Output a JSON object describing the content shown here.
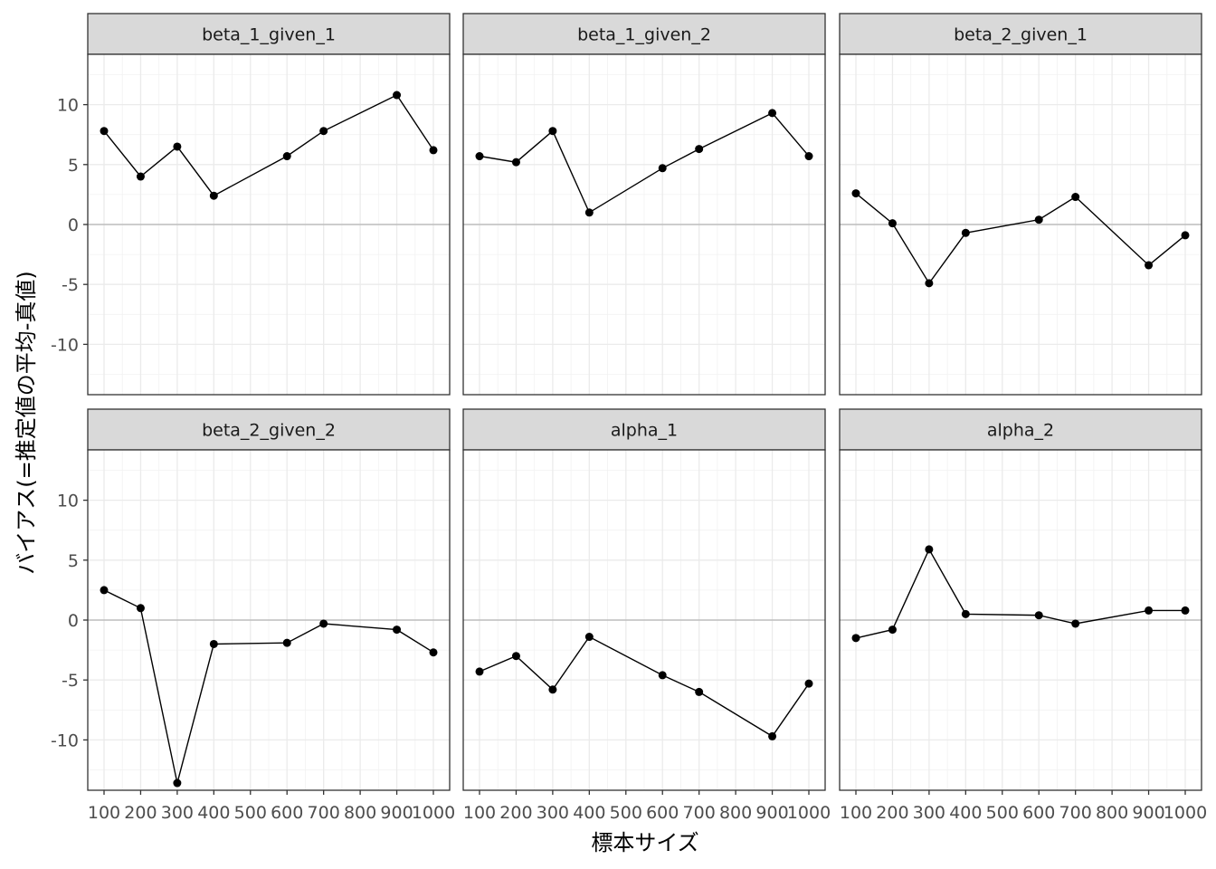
{
  "chart_data": {
    "type": "line",
    "facet_layout": "3 columns x 2 rows, shared axes",
    "xlabel": "標本サイズ",
    "ylabel": "バイアス(=推定値の平均-真値)",
    "x_ticks": [
      100,
      200,
      300,
      400,
      500,
      600,
      700,
      800,
      900,
      1000
    ],
    "x_tick_labels": [
      "100",
      "200",
      "300",
      "400",
      "500",
      "600",
      "700",
      "800",
      "900",
      "1000"
    ],
    "y_ticks": [
      -10,
      -5,
      0,
      5,
      10
    ],
    "y_tick_labels": [
      "-10",
      "-5",
      "0",
      "5",
      "10"
    ],
    "xlim": [
      100,
      1000
    ],
    "ylim": [
      -14.2,
      14.2
    ],
    "reference_line": 0,
    "grid": true,
    "theme": "black-and-white",
    "colors": {
      "line": "#000000",
      "point": "#000000",
      "strip_fill": "#d9d9d9",
      "grid": "#ebebeb",
      "zero_line": "#bebebe",
      "panel_border": "#333333"
    },
    "panels": [
      {
        "label": "beta_1_given_1",
        "x": [
          100,
          200,
          300,
          400,
          600,
          700,
          900,
          1000
        ],
        "y": [
          7.8,
          4.0,
          6.5,
          2.4,
          5.7,
          7.8,
          10.8,
          6.2
        ]
      },
      {
        "label": "beta_1_given_2",
        "x": [
          100,
          200,
          300,
          400,
          600,
          700,
          900,
          1000
        ],
        "y": [
          5.7,
          5.2,
          7.8,
          1.0,
          4.7,
          6.3,
          9.3,
          5.7
        ]
      },
      {
        "label": "beta_2_given_1",
        "x": [
          100,
          200,
          300,
          400,
          600,
          700,
          900,
          1000
        ],
        "y": [
          2.6,
          0.1,
          -4.9,
          -0.7,
          0.4,
          2.3,
          -3.4,
          -0.9
        ]
      },
      {
        "label": "beta_2_given_2",
        "x": [
          100,
          200,
          300,
          400,
          600,
          700,
          900,
          1000
        ],
        "y": [
          2.5,
          1.0,
          -13.6,
          -2.0,
          -1.9,
          -0.3,
          -0.8,
          -2.7
        ]
      },
      {
        "label": "alpha_1",
        "x": [
          100,
          200,
          300,
          400,
          600,
          700,
          900,
          1000
        ],
        "y": [
          -4.3,
          -3.0,
          -5.8,
          -1.4,
          -4.6,
          -6.0,
          -9.7,
          -5.3
        ]
      },
      {
        "label": "alpha_2",
        "x": [
          100,
          200,
          300,
          400,
          600,
          700,
          900,
          1000
        ],
        "y": [
          -1.5,
          -0.8,
          5.9,
          0.5,
          0.4,
          -0.3,
          0.8,
          0.8
        ]
      }
    ]
  }
}
